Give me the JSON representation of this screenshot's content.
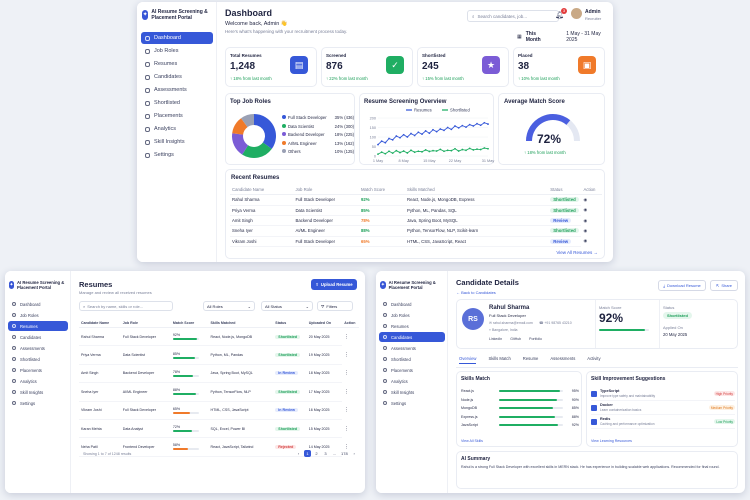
{
  "dashboard": {
    "brand": "AI Resume Screening & Placement Portal",
    "nav": [
      "Dashboard",
      "Job Roles",
      "Resumes",
      "Candidates",
      "Assessments",
      "Shortlisted",
      "Placements",
      "Analytics",
      "Skill Insights",
      "Settings"
    ],
    "title": "Dashboard",
    "welcome": "Welcome back, Admin 👋",
    "subtitle": "Here's what's happening with your recruitment process today.",
    "search_placeholder": "Search candidates, job...",
    "notif_count": "3",
    "user_name": "Admin",
    "user_role": "Recruiter",
    "period": "This Month",
    "date_range": "1 May - 31 May 2025",
    "stats": [
      {
        "label": "Total Resumes",
        "value": "1,248",
        "delta": "18% from last month",
        "color": "#3658d8",
        "icon": "document-icon"
      },
      {
        "label": "Screened",
        "value": "876",
        "delta": "22% from last month",
        "color": "#1fae63",
        "icon": "check-circle-icon"
      },
      {
        "label": "Shortlisted",
        "value": "245",
        "delta": "15% from last month",
        "color": "#7b5cd6",
        "icon": "star-icon"
      },
      {
        "label": "Placed",
        "value": "38",
        "delta": "10% from last month",
        "color": "#f07a2a",
        "icon": "briefcase-icon"
      }
    ],
    "top_roles_title": "Top Job Roles",
    "top_roles": [
      {
        "name": "Full Stack Developer",
        "value": "35% (436)",
        "color": "#3658d8"
      },
      {
        "name": "Data Scientist",
        "value": "24% (300)",
        "color": "#1fae63"
      },
      {
        "name": "Backend Developer",
        "value": "18% (225)",
        "color": "#7b5cd6"
      },
      {
        "name": "AI/ML Engineer",
        "value": "13% (162)",
        "color": "#f07a2a"
      },
      {
        "name": "Others",
        "value": "10% (125)",
        "color": "#9aa0b4"
      }
    ],
    "screening_title": "Resume Screening Overview",
    "legend": [
      "Resumes",
      "Shortlisted"
    ],
    "x_ticks": [
      "1 May",
      "8 May",
      "15 May",
      "22 May",
      "31 May"
    ],
    "y_ticks": [
      "200",
      "150",
      "100",
      "50",
      "0"
    ],
    "match_title": "Average Match Score",
    "match_value": "72%",
    "match_delta": "18% from last month",
    "recent_title": "Recent Resumes",
    "recent_headers": [
      "Candidate Name",
      "Job Role",
      "Match Score",
      "Skills Matched",
      "Status",
      "Action"
    ],
    "recent_rows": [
      [
        "Rahul Sharma",
        "Full Stack Developer",
        "92%",
        "React, Node.js, MongoDB, Express",
        "Shortlisted"
      ],
      [
        "Priya Verma",
        "Data Scientist",
        "85%",
        "Python, ML, Pandas, SQL",
        "Shortlisted"
      ],
      [
        "Amit Singh",
        "Backend Developer",
        "78%",
        "Java, Spring Boot, MySQL",
        "Review"
      ],
      [
        "Sneha Iyer",
        "AI/ML Engineer",
        "88%",
        "Python, TensorFlow, NLP, Scikit-learn",
        "Shortlisted"
      ],
      [
        "Vikram Joshi",
        "Full Stack Developer",
        "65%",
        "HTML, CSS, JavaScript, React",
        "Review"
      ]
    ],
    "view_all": "View All Resumes →"
  },
  "chart_data": {
    "type": "line",
    "title": "Resume Screening Overview",
    "x": [
      "1 May",
      "2",
      "3",
      "4",
      "5",
      "6",
      "7",
      "8 May",
      "9",
      "10",
      "11",
      "12",
      "13",
      "14",
      "15 May",
      "16",
      "17",
      "18",
      "19",
      "20",
      "21",
      "22 May",
      "23",
      "24",
      "25",
      "26",
      "27",
      "28",
      "29",
      "30",
      "31 May"
    ],
    "series": [
      {
        "name": "Resumes",
        "color": "#3658d8",
        "values": [
          60,
          78,
          70,
          92,
          85,
          105,
          96,
          112,
          100,
          118,
          108,
          125,
          115,
          132,
          120,
          138,
          128,
          142,
          135,
          150,
          140,
          158,
          148,
          160,
          152,
          165,
          158,
          170,
          162,
          175,
          168
        ]
      },
      {
        "name": "Shortlisted",
        "color": "#1fae63",
        "values": [
          10,
          20,
          12,
          25,
          15,
          28,
          18,
          26,
          16,
          30,
          20,
          25,
          22,
          32,
          24,
          28,
          26,
          35,
          25,
          30,
          28,
          38,
          26,
          34,
          30,
          40,
          32,
          36,
          34,
          42,
          38
        ]
      }
    ],
    "ylim": [
      0,
      200
    ]
  },
  "resumes": {
    "brand": "AI Resume Screening & Placement Portal",
    "nav": [
      "Dashboard",
      "Job Roles",
      "Resumes",
      "Candidates",
      "Assessments",
      "Shortlisted",
      "Placements",
      "Analytics",
      "Skill Insights",
      "Settings"
    ],
    "title": "Resumes",
    "subtitle": "Manage and review all received resumes",
    "upload": "Upload Resume",
    "search_placeholder": "Search by name, skills or role...",
    "filter1": "All Roles",
    "filter2": "All Status",
    "filters": "Filters",
    "headers": [
      "Candidate Name",
      "Job Role",
      "Match Score",
      "Skills Matched",
      "Status",
      "Uploaded On",
      "Action"
    ],
    "rows": [
      [
        "Rahul Sharma",
        "Full Stack Developer",
        "92%",
        "React, Node.js, MongoDB",
        "Shortlisted",
        "20 May 2025",
        92
      ],
      [
        "Priya Verma",
        "Data Scientist",
        "85%",
        "Python, ML, Pandas",
        "Shortlisted",
        "19 May 2025",
        85
      ],
      [
        "Amit Singh",
        "Backend Developer",
        "78%",
        "Java, Spring Boot, MySQL",
        "In Review",
        "18 May 2025",
        78
      ],
      [
        "Sneha Iyer",
        "AI/ML Engineer",
        "88%",
        "Python, TensorFlow, NLP",
        "Shortlisted",
        "17 May 2025",
        88
      ],
      [
        "Vikram Joshi",
        "Full Stack Developer",
        "65%",
        "HTML, CSS, JavaScript",
        "In Review",
        "16 May 2025",
        65
      ],
      [
        "Karan Mehta",
        "Data Analyst",
        "72%",
        "SQL, Excel, Power BI",
        "Shortlisted",
        "15 May 2025",
        72
      ],
      [
        "Neha Patil",
        "Frontend Developer",
        "58%",
        "React, JavaScript, Tailwind",
        "Rejected",
        "14 May 2025",
        58
      ]
    ],
    "footer": "Showing 1 to 7 of 1248 results",
    "pages": [
      "‹",
      "1",
      "2",
      "3",
      "...",
      "178",
      "›"
    ]
  },
  "candidate": {
    "brand": "AI Resume Screening & Placement Portal",
    "nav": [
      "Dashboard",
      "Job Roles",
      "Resumes",
      "Candidates",
      "Assessments",
      "Shortlisted",
      "Placements",
      "Analytics",
      "Skill Insights",
      "Settings"
    ],
    "title": "Candidate Details",
    "back": "← Back to Candidates",
    "download": "Download Resume",
    "share": "Share",
    "initials": "RS",
    "name": "Rahul Sharma",
    "role": "Full Stack Developer",
    "email": "rahul.sharma@email.com",
    "phone": "+91 98765 43210",
    "location": "Bangalore, India",
    "links": [
      "LinkedIn",
      "GitHub",
      "Portfolio"
    ],
    "match_label": "Match Score",
    "match_value": "92%",
    "status_label": "Status",
    "status_value": "Shortlisted",
    "applied_label": "Applied On",
    "applied_value": "20 May 2025",
    "tabs": [
      "Overview",
      "Skills Match",
      "Resume",
      "Assessments",
      "Activity"
    ],
    "skills_title": "Skills Match",
    "skills": [
      {
        "name": "React.js",
        "value": "95%",
        "pct": 95
      },
      {
        "name": "Node.js",
        "value": "90%",
        "pct": 90
      },
      {
        "name": "MongoDB",
        "value": "85%",
        "pct": 85
      },
      {
        "name": "Express.js",
        "value": "88%",
        "pct": 88
      },
      {
        "name": "JavaScript",
        "value": "92%",
        "pct": 92
      }
    ],
    "view_skills": "View All Skills",
    "improve_title": "Skill Improvement Suggestions",
    "suggestions": [
      {
        "name": "TypeScript",
        "note": "Improve type safety and maintainability",
        "level": "High Priority"
      },
      {
        "name": "Docker",
        "note": "Learn containerization basics",
        "level": "Medium Priority"
      },
      {
        "name": "Redis",
        "note": "Caching and performance optimization",
        "level": "Low Priority"
      }
    ],
    "view_learning": "View Learning Resources",
    "ai_title": "AI Summary",
    "ai_text": "Rahul is a strong Full Stack Developer with excellent skills in MERN stack. He has experience in building scalable web applications. Recommended for final round."
  }
}
